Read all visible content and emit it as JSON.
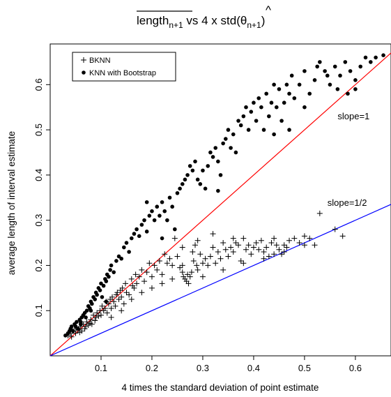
{
  "chart_data": {
    "type": "scatter",
    "title": {
      "overline_main": "length",
      "overline_sub": "n+1",
      "vs": " vs  4 x std(",
      "theta": "θ",
      "hat": "^",
      "theta_sub": "n+1",
      "close": ")"
    },
    "xlabel": "4 times the standard deviation of point estimate",
    "ylabel": "average length of interval estimate",
    "xlim": [
      0.0,
      0.67
    ],
    "ylim": [
      0.0,
      0.69
    ],
    "xticks": [
      0.1,
      0.2,
      0.3,
      0.4,
      0.5,
      0.6
    ],
    "xtick_labels": [
      "0.1",
      "0.2",
      "0.3",
      "0.4",
      "0.5",
      "0.6"
    ],
    "yticks": [
      0.1,
      0.2,
      0.3,
      0.4,
      0.5,
      0.6
    ],
    "ytick_labels": [
      "0.1",
      "0.2",
      "0.3",
      "0.4",
      "0.5",
      "0.6"
    ],
    "grid": false,
    "legend_position": "top-left",
    "reference_lines": [
      {
        "label": "slope=1",
        "slope": 1.0,
        "intercept": 0.0,
        "color": "#ff0000"
      },
      {
        "label": "slope=1/2",
        "slope": 0.5,
        "intercept": 0.0,
        "color": "#0000ff"
      }
    ],
    "series": [
      {
        "name": "BKNN",
        "marker": "plus",
        "points": [
          [
            0.035,
            0.045
          ],
          [
            0.04,
            0.05
          ],
          [
            0.042,
            0.042
          ],
          [
            0.045,
            0.055
          ],
          [
            0.05,
            0.05
          ],
          [
            0.052,
            0.06
          ],
          [
            0.055,
            0.058
          ],
          [
            0.058,
            0.052
          ],
          [
            0.06,
            0.065
          ],
          [
            0.062,
            0.055
          ],
          [
            0.065,
            0.07
          ],
          [
            0.068,
            0.06
          ],
          [
            0.07,
            0.065
          ],
          [
            0.072,
            0.075
          ],
          [
            0.075,
            0.068
          ],
          [
            0.078,
            0.072
          ],
          [
            0.08,
            0.08
          ],
          [
            0.082,
            0.07
          ],
          [
            0.085,
            0.09
          ],
          [
            0.088,
            0.078
          ],
          [
            0.09,
            0.085
          ],
          [
            0.092,
            0.095
          ],
          [
            0.095,
            0.088
          ],
          [
            0.098,
            0.1
          ],
          [
            0.1,
            0.09
          ],
          [
            0.102,
            0.11
          ],
          [
            0.105,
            0.1
          ],
          [
            0.108,
            0.105
          ],
          [
            0.11,
            0.12
          ],
          [
            0.112,
            0.095
          ],
          [
            0.115,
            0.115
          ],
          [
            0.118,
            0.125
          ],
          [
            0.12,
            0.105
          ],
          [
            0.122,
            0.13
          ],
          [
            0.125,
            0.12
          ],
          [
            0.128,
            0.11
          ],
          [
            0.13,
            0.135
          ],
          [
            0.132,
            0.14
          ],
          [
            0.135,
            0.125
          ],
          [
            0.138,
            0.145
          ],
          [
            0.14,
            0.13
          ],
          [
            0.142,
            0.15
          ],
          [
            0.145,
            0.115
          ],
          [
            0.148,
            0.16
          ],
          [
            0.15,
            0.14
          ],
          [
            0.155,
            0.135
          ],
          [
            0.16,
            0.17
          ],
          [
            0.162,
            0.155
          ],
          [
            0.165,
            0.15
          ],
          [
            0.168,
            0.18
          ],
          [
            0.17,
            0.16
          ],
          [
            0.175,
            0.175
          ],
          [
            0.18,
            0.19
          ],
          [
            0.185,
            0.165
          ],
          [
            0.19,
            0.185
          ],
          [
            0.195,
            0.205
          ],
          [
            0.2,
            0.175
          ],
          [
            0.205,
            0.2
          ],
          [
            0.21,
            0.19
          ],
          [
            0.215,
            0.21
          ],
          [
            0.22,
            0.18
          ],
          [
            0.225,
            0.225
          ],
          [
            0.23,
            0.205
          ],
          [
            0.235,
            0.215
          ],
          [
            0.24,
            0.2
          ],
          [
            0.245,
            0.26
          ],
          [
            0.25,
            0.22
          ],
          [
            0.255,
            0.195
          ],
          [
            0.26,
            0.24
          ],
          [
            0.262,
            0.175
          ],
          [
            0.265,
            0.17
          ],
          [
            0.268,
            0.165
          ],
          [
            0.27,
            0.18
          ],
          [
            0.272,
            0.16
          ],
          [
            0.275,
            0.175
          ],
          [
            0.278,
            0.185
          ],
          [
            0.28,
            0.23
          ],
          [
            0.282,
            0.21
          ],
          [
            0.285,
            0.245
          ],
          [
            0.288,
            0.2
          ],
          [
            0.29,
            0.19
          ],
          [
            0.295,
            0.225
          ],
          [
            0.3,
            0.205
          ],
          [
            0.305,
            0.215
          ],
          [
            0.31,
            0.2
          ],
          [
            0.315,
            0.22
          ],
          [
            0.32,
            0.24
          ],
          [
            0.325,
            0.205
          ],
          [
            0.33,
            0.23
          ],
          [
            0.335,
            0.215
          ],
          [
            0.34,
            0.25
          ],
          [
            0.345,
            0.235
          ],
          [
            0.35,
            0.22
          ],
          [
            0.355,
            0.24
          ],
          [
            0.36,
            0.23
          ],
          [
            0.365,
            0.25
          ],
          [
            0.37,
            0.245
          ],
          [
            0.375,
            0.21
          ],
          [
            0.38,
            0.26
          ],
          [
            0.385,
            0.235
          ],
          [
            0.39,
            0.245
          ],
          [
            0.395,
            0.225
          ],
          [
            0.4,
            0.24
          ],
          [
            0.405,
            0.25
          ],
          [
            0.41,
            0.235
          ],
          [
            0.415,
            0.255
          ],
          [
            0.42,
            0.23
          ],
          [
            0.425,
            0.24
          ],
          [
            0.43,
            0.22
          ],
          [
            0.435,
            0.25
          ],
          [
            0.44,
            0.225
          ],
          [
            0.445,
            0.245
          ],
          [
            0.45,
            0.235
          ],
          [
            0.455,
            0.225
          ],
          [
            0.46,
            0.23
          ],
          [
            0.465,
            0.24
          ],
          [
            0.47,
            0.255
          ],
          [
            0.48,
            0.26
          ],
          [
            0.49,
            0.25
          ],
          [
            0.5,
            0.245
          ],
          [
            0.51,
            0.26
          ],
          [
            0.52,
            0.245
          ],
          [
            0.53,
            0.315
          ],
          [
            0.56,
            0.28
          ],
          [
            0.575,
            0.265
          ],
          [
            0.12,
            0.085
          ],
          [
            0.14,
            0.1
          ],
          [
            0.16,
            0.125
          ],
          [
            0.18,
            0.14
          ],
          [
            0.2,
            0.15
          ],
          [
            0.22,
            0.16
          ],
          [
            0.24,
            0.17
          ],
          [
            0.26,
            0.185
          ],
          [
            0.3,
            0.175
          ],
          [
            0.34,
            0.19
          ],
          [
            0.38,
            0.205
          ],
          [
            0.42,
            0.215
          ],
          [
            0.46,
            0.245
          ],
          [
            0.5,
            0.265
          ],
          [
            0.44,
            0.26
          ],
          [
            0.36,
            0.26
          ],
          [
            0.32,
            0.27
          ],
          [
            0.26,
            0.2
          ],
          [
            0.29,
            0.255
          ]
        ]
      },
      {
        "name": "KNN with Bootstrap",
        "marker": "dot",
        "points": [
          [
            0.03,
            0.045
          ],
          [
            0.035,
            0.05
          ],
          [
            0.038,
            0.055
          ],
          [
            0.04,
            0.06
          ],
          [
            0.042,
            0.065
          ],
          [
            0.045,
            0.055
          ],
          [
            0.048,
            0.07
          ],
          [
            0.05,
            0.065
          ],
          [
            0.052,
            0.075
          ],
          [
            0.055,
            0.06
          ],
          [
            0.058,
            0.08
          ],
          [
            0.06,
            0.07
          ],
          [
            0.062,
            0.085
          ],
          [
            0.065,
            0.09
          ],
          [
            0.068,
            0.095
          ],
          [
            0.07,
            0.085
          ],
          [
            0.072,
            0.1
          ],
          [
            0.075,
            0.11
          ],
          [
            0.078,
            0.105
          ],
          [
            0.08,
            0.12
          ],
          [
            0.082,
            0.115
          ],
          [
            0.085,
            0.13
          ],
          [
            0.088,
            0.125
          ],
          [
            0.09,
            0.14
          ],
          [
            0.092,
            0.135
          ],
          [
            0.095,
            0.15
          ],
          [
            0.098,
            0.145
          ],
          [
            0.1,
            0.16
          ],
          [
            0.102,
            0.13
          ],
          [
            0.105,
            0.155
          ],
          [
            0.108,
            0.17
          ],
          [
            0.11,
            0.165
          ],
          [
            0.112,
            0.18
          ],
          [
            0.115,
            0.175
          ],
          [
            0.118,
            0.19
          ],
          [
            0.12,
            0.2
          ],
          [
            0.125,
            0.185
          ],
          [
            0.13,
            0.21
          ],
          [
            0.135,
            0.22
          ],
          [
            0.14,
            0.215
          ],
          [
            0.145,
            0.24
          ],
          [
            0.15,
            0.25
          ],
          [
            0.155,
            0.23
          ],
          [
            0.16,
            0.26
          ],
          [
            0.165,
            0.27
          ],
          [
            0.17,
            0.28
          ],
          [
            0.175,
            0.265
          ],
          [
            0.18,
            0.29
          ],
          [
            0.185,
            0.3
          ],
          [
            0.19,
            0.275
          ],
          [
            0.195,
            0.31
          ],
          [
            0.2,
            0.32
          ],
          [
            0.205,
            0.3
          ],
          [
            0.21,
            0.33
          ],
          [
            0.215,
            0.31
          ],
          [
            0.22,
            0.34
          ],
          [
            0.225,
            0.32
          ],
          [
            0.23,
            0.3
          ],
          [
            0.235,
            0.35
          ],
          [
            0.24,
            0.33
          ],
          [
            0.245,
            0.28
          ],
          [
            0.25,
            0.36
          ],
          [
            0.255,
            0.37
          ],
          [
            0.26,
            0.38
          ],
          [
            0.265,
            0.39
          ],
          [
            0.27,
            0.4
          ],
          [
            0.275,
            0.42
          ],
          [
            0.28,
            0.41
          ],
          [
            0.285,
            0.43
          ],
          [
            0.29,
            0.39
          ],
          [
            0.295,
            0.38
          ],
          [
            0.3,
            0.41
          ],
          [
            0.305,
            0.37
          ],
          [
            0.31,
            0.42
          ],
          [
            0.315,
            0.45
          ],
          [
            0.32,
            0.44
          ],
          [
            0.325,
            0.46
          ],
          [
            0.33,
            0.43
          ],
          [
            0.335,
            0.4
          ],
          [
            0.34,
            0.47
          ],
          [
            0.345,
            0.48
          ],
          [
            0.35,
            0.5
          ],
          [
            0.355,
            0.46
          ],
          [
            0.36,
            0.49
          ],
          [
            0.365,
            0.45
          ],
          [
            0.37,
            0.52
          ],
          [
            0.375,
            0.51
          ],
          [
            0.38,
            0.53
          ],
          [
            0.385,
            0.55
          ],
          [
            0.39,
            0.5
          ],
          [
            0.395,
            0.54
          ],
          [
            0.4,
            0.56
          ],
          [
            0.405,
            0.52
          ],
          [
            0.41,
            0.57
          ],
          [
            0.415,
            0.55
          ],
          [
            0.42,
            0.5
          ],
          [
            0.425,
            0.58
          ],
          [
            0.43,
            0.53
          ],
          [
            0.435,
            0.56
          ],
          [
            0.44,
            0.6
          ],
          [
            0.445,
            0.55
          ],
          [
            0.45,
            0.59
          ],
          [
            0.455,
            0.52
          ],
          [
            0.46,
            0.56
          ],
          [
            0.465,
            0.6
          ],
          [
            0.47,
            0.58
          ],
          [
            0.475,
            0.62
          ],
          [
            0.48,
            0.57
          ],
          [
            0.49,
            0.6
          ],
          [
            0.5,
            0.63
          ],
          [
            0.51,
            0.58
          ],
          [
            0.52,
            0.61
          ],
          [
            0.53,
            0.65
          ],
          [
            0.54,
            0.63
          ],
          [
            0.55,
            0.6
          ],
          [
            0.56,
            0.64
          ],
          [
            0.57,
            0.62
          ],
          [
            0.58,
            0.65
          ],
          [
            0.59,
            0.63
          ],
          [
            0.6,
            0.61
          ],
          [
            0.61,
            0.64
          ],
          [
            0.62,
            0.66
          ],
          [
            0.63,
            0.65
          ],
          [
            0.64,
            0.66
          ],
          [
            0.655,
            0.665
          ],
          [
            0.525,
            0.64
          ],
          [
            0.545,
            0.62
          ],
          [
            0.565,
            0.59
          ],
          [
            0.585,
            0.58
          ],
          [
            0.6,
            0.59
          ],
          [
            0.33,
            0.365
          ],
          [
            0.19,
            0.34
          ],
          [
            0.22,
            0.26
          ],
          [
            0.11,
            0.12
          ],
          [
            0.08,
            0.1
          ],
          [
            0.06,
            0.075
          ],
          [
            0.5,
            0.55
          ],
          [
            0.47,
            0.5
          ],
          [
            0.44,
            0.49
          ]
        ]
      }
    ],
    "annotations": [
      {
        "text": "slope=1",
        "x": 0.565,
        "y": 0.523
      },
      {
        "text": "slope=1/2",
        "x": 0.545,
        "y": 0.332
      }
    ]
  }
}
